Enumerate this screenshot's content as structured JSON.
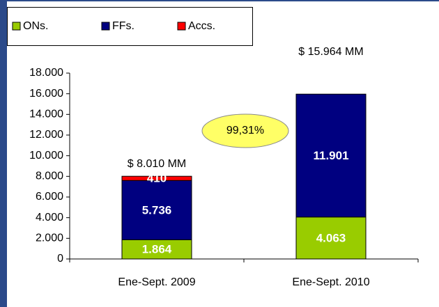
{
  "chart_data": {
    "type": "stacked_bar",
    "categories": [
      "Ene-Sept. 2009",
      "Ene-Sept. 2010"
    ],
    "series": [
      {
        "name": "ONs.",
        "color": "#99cc00",
        "values": [
          1864,
          4063
        ],
        "value_labels": [
          "1.864",
          "4.063"
        ]
      },
      {
        "name": "FFs.",
        "color": "#000080",
        "values": [
          5736,
          11901
        ],
        "value_labels": [
          "5.736",
          "11.901"
        ]
      },
      {
        "name": "Accs.",
        "color": "#ff0000",
        "values": [
          410,
          null
        ],
        "value_labels": [
          "410",
          null
        ]
      }
    ],
    "ylim": [
      0,
      18000
    ],
    "yticks": [
      0,
      {
        "value": 2000,
        "label": "2.000"
      },
      {
        "value": 4000,
        "label": "4.000"
      },
      {
        "value": 6000,
        "label": "6.000"
      },
      {
        "value": 8000,
        "label": "8.000"
      },
      {
        "value": 10000,
        "label": "10.000"
      },
      {
        "value": 12000,
        "label": "12.000"
      },
      {
        "value": 14000,
        "label": "14.000"
      },
      {
        "value": 16000,
        "label": "16.000"
      },
      {
        "value": 18000,
        "label": "18.000"
      }
    ],
    "annotations": [
      "$ 8.010 MM",
      "$ 15.964 MM",
      "99,31%"
    ],
    "legend": "top-left"
  }
}
